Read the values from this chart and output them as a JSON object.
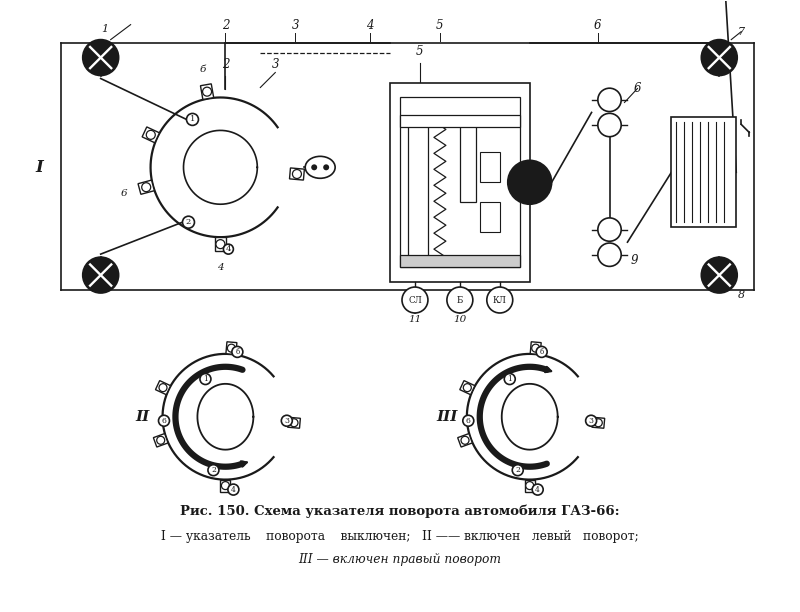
{
  "title": "Рис. 150. Схема указателя поворота автомобиля ГАЗ-66:",
  "caption_line2": "I — указатель    поворота    выключен;   II —— включен   левый   поворот;",
  "caption_line3": "III — включен правый поворот",
  "bg_color": "#ffffff",
  "line_color": "#1a1a1a",
  "fig_width": 8.0,
  "fig_height": 6.12
}
